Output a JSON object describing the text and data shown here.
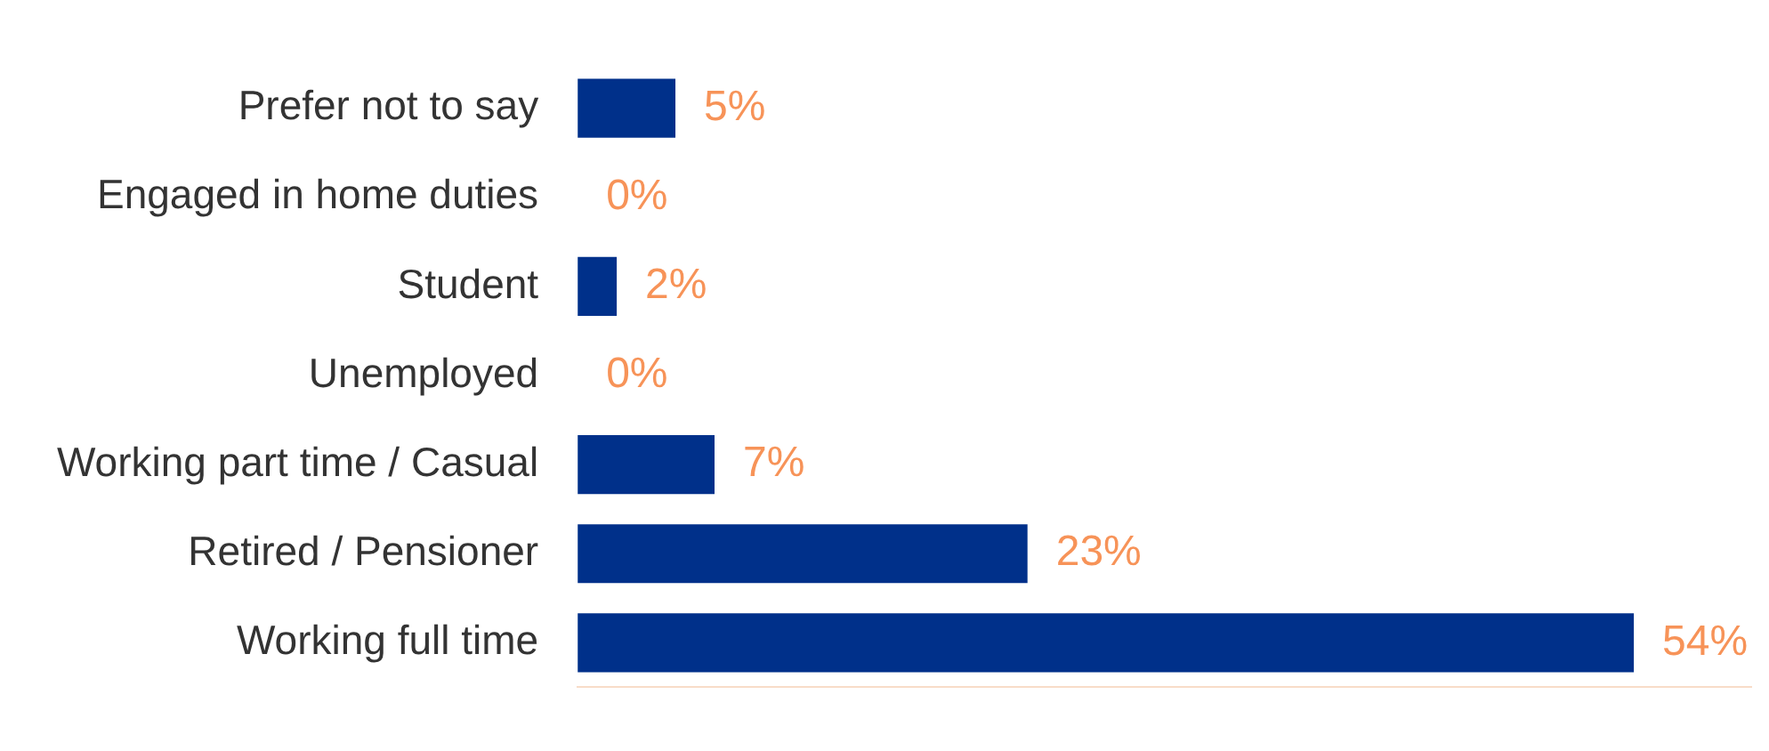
{
  "chart_data": {
    "type": "bar",
    "orientation": "horizontal",
    "categories": [
      "Prefer not to say",
      "Engaged in home duties",
      "Student",
      "Unemployed",
      "Working part time / Casual",
      "Retired / Pensioner",
      "Working full time"
    ],
    "values": [
      5,
      0,
      2,
      0,
      7,
      23,
      54
    ],
    "value_labels": [
      "5%",
      "0%",
      "2%",
      "0%",
      "7%",
      "23%",
      "54%"
    ],
    "color": "#00308a",
    "xlim": [
      0,
      60
    ],
    "tick_labels": "y",
    "grid": false,
    "legend": false
  }
}
